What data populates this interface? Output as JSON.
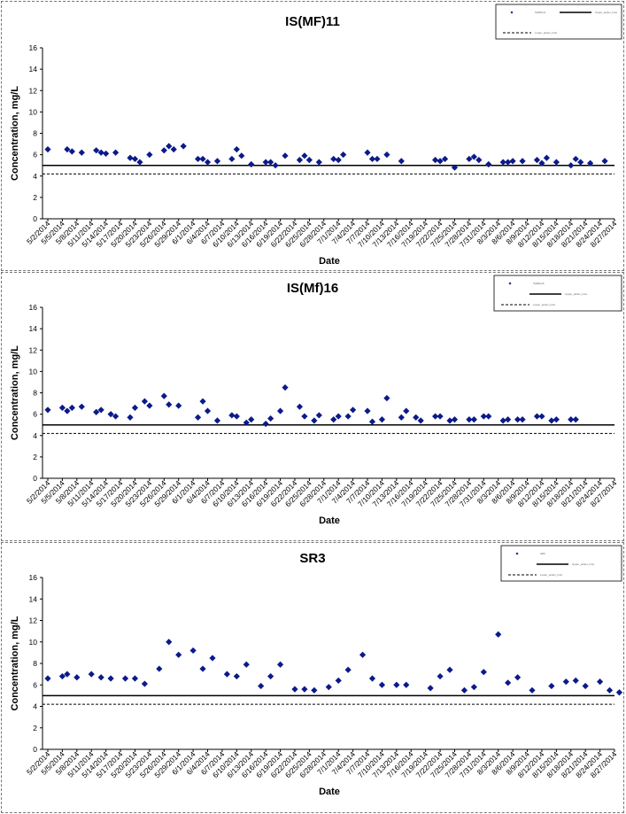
{
  "chart_data": [
    {
      "type": "scatter",
      "title": "IS(MF)11",
      "xlabel": "Date",
      "ylabel": "Concentration, mg/L",
      "ylim": [
        0,
        16
      ],
      "yticks": [
        0,
        2,
        4,
        6,
        8,
        10,
        12,
        14,
        16
      ],
      "grid": false,
      "legend_position": "top-right",
      "legend": [
        "IS(MF)11",
        "Upper_action_limit",
        "Lower_action_limit"
      ],
      "xticks": [
        "5/2/2014",
        "5/5/2014",
        "5/8/2014",
        "5/11/2014",
        "5/14/2014",
        "5/17/2014",
        "5/20/2014",
        "5/23/2014",
        "5/26/2014",
        "5/29/2014",
        "6/1/2014",
        "6/4/2014",
        "6/7/2014",
        "6/10/2014",
        "6/13/2014",
        "6/16/2014",
        "6/19/2014",
        "6/22/2014",
        "6/25/2014",
        "6/28/2014",
        "7/1/2014",
        "7/4/2014",
        "7/7/2014",
        "7/10/2014",
        "7/13/2014",
        "7/16/2014",
        "7/19/2014",
        "7/22/2014",
        "7/25/2014",
        "7/28/2014",
        "7/31/2014",
        "8/3/2014",
        "8/6/2014",
        "8/9/2014",
        "8/12/2014",
        "8/15/2014",
        "8/18/2014",
        "8/21/2014",
        "8/24/2014",
        "8/27/2014"
      ],
      "x": [
        "5/2/2014",
        "5/6/2014",
        "5/7/2014",
        "5/9/2014",
        "5/12/2014",
        "5/13/2014",
        "5/14/2014",
        "5/16/2014",
        "5/19/2014",
        "5/20/2014",
        "5/21/2014",
        "5/23/2014",
        "5/26/2014",
        "5/27/2014",
        "5/28/2014",
        "5/30/2014",
        "6/2/2014",
        "6/3/2014",
        "6/4/2014",
        "6/6/2014",
        "6/9/2014",
        "6/10/2014",
        "6/11/2014",
        "6/13/2014",
        "6/16/2014",
        "6/17/2014",
        "6/18/2014",
        "6/20/2014",
        "6/23/2014",
        "6/24/2014",
        "6/25/2014",
        "6/27/2014",
        "6/30/2014",
        "7/1/2014",
        "7/2/2014",
        "7/7/2014",
        "7/8/2014",
        "7/9/2014",
        "7/11/2014",
        "7/14/2014",
        "7/21/2014",
        "7/22/2014",
        "7/23/2014",
        "7/25/2014",
        "7/28/2014",
        "7/29/2014",
        "7/30/2014",
        "8/1/2014",
        "8/4/2014",
        "8/5/2014",
        "8/6/2014",
        "8/8/2014",
        "8/11/2014",
        "8/12/2014",
        "8/13/2014",
        "8/15/2014",
        "8/18/2014",
        "8/19/2014",
        "8/20/2014",
        "8/22/2014",
        "8/25/2014"
      ],
      "y": [
        6.5,
        6.5,
        6.3,
        6.2,
        6.4,
        6.2,
        6.1,
        6.2,
        5.7,
        5.6,
        5.3,
        6.0,
        6.4,
        6.8,
        6.5,
        6.8,
        5.6,
        5.6,
        5.3,
        5.4,
        5.6,
        6.5,
        5.9,
        5.1,
        5.3,
        5.3,
        5.0,
        5.9,
        5.5,
        5.9,
        5.5,
        5.3,
        5.6,
        5.5,
        6.0,
        6.2,
        5.6,
        5.6,
        6.0,
        5.4,
        5.5,
        5.4,
        5.6,
        4.8,
        5.6,
        5.8,
        5.5,
        5.1,
        5.3,
        5.3,
        5.4,
        5.4,
        5.5,
        5.2,
        5.7,
        5.3,
        5.0,
        5.6,
        5.3,
        5.2,
        5.4
      ],
      "reference_lines": {
        "solid": 5.0,
        "dashed": 4.2
      }
    },
    {
      "type": "scatter",
      "title": "IS(Mf)16",
      "xlabel": "Date",
      "ylabel": "Concentration, mg/L",
      "ylim": [
        0,
        16
      ],
      "yticks": [
        0,
        2,
        4,
        6,
        8,
        10,
        12,
        14,
        16
      ],
      "grid": false,
      "legend_position": "top-right",
      "legend": [
        "IS(MF)16",
        "Upper_action_limit",
        "Lower_action_limit"
      ],
      "xticks": [
        "5/2/2014",
        "5/5/2014",
        "5/8/2014",
        "5/11/2014",
        "5/14/2014",
        "5/17/2014",
        "5/20/2014",
        "5/23/2014",
        "5/26/2014",
        "5/29/2014",
        "6/1/2014",
        "6/4/2014",
        "6/7/2014",
        "6/10/2014",
        "6/13/2014",
        "6/16/2014",
        "6/19/2014",
        "6/22/2014",
        "6/25/2014",
        "6/28/2014",
        "7/1/2014",
        "7/4/2014",
        "7/7/2014",
        "7/10/2014",
        "7/13/2014",
        "7/16/2014",
        "7/19/2014",
        "7/22/2014",
        "7/25/2014",
        "7/28/2014",
        "7/31/2014",
        "8/3/2014",
        "8/6/2014",
        "8/9/2014",
        "8/12/2014",
        "8/15/2014",
        "8/18/2014",
        "8/21/2014",
        "8/24/2014",
        "8/27/2014"
      ],
      "x": [
        "5/2/2014",
        "5/5/2014",
        "5/6/2014",
        "5/7/2014",
        "5/9/2014",
        "5/12/2014",
        "5/13/2014",
        "5/15/2014",
        "5/16/2014",
        "5/19/2014",
        "5/20/2014",
        "5/22/2014",
        "5/23/2014",
        "5/26/2014",
        "5/27/2014",
        "5/29/2014",
        "6/2/2014",
        "6/3/2014",
        "6/4/2014",
        "6/6/2014",
        "6/9/2014",
        "6/10/2014",
        "6/12/2014",
        "6/13/2014",
        "6/16/2014",
        "6/17/2014",
        "6/19/2014",
        "6/20/2014",
        "6/23/2014",
        "6/24/2014",
        "6/26/2014",
        "6/27/2014",
        "6/30/2014",
        "7/1/2014",
        "7/3/2014",
        "7/4/2014",
        "7/7/2014",
        "7/8/2014",
        "7/10/2014",
        "7/11/2014",
        "7/14/2014",
        "7/15/2014",
        "7/17/2014",
        "7/18/2014",
        "7/21/2014",
        "7/22/2014",
        "7/24/2014",
        "7/25/2014",
        "7/28/2014",
        "7/29/2014",
        "7/31/2014",
        "8/1/2014",
        "8/4/2014",
        "8/5/2014",
        "8/7/2014",
        "8/8/2014",
        "8/11/2014",
        "8/12/2014",
        "8/14/2014",
        "8/15/2014",
        "8/18/2014",
        "8/19/2014"
      ],
      "y": [
        6.4,
        6.6,
        6.3,
        6.6,
        6.7,
        6.2,
        6.4,
        6.0,
        5.8,
        5.7,
        6.6,
        7.2,
        6.8,
        7.7,
        6.9,
        6.8,
        5.7,
        7.2,
        6.3,
        5.4,
        5.9,
        5.8,
        5.2,
        5.5,
        5.1,
        5.6,
        6.3,
        8.5,
        6.7,
        5.8,
        5.4,
        5.9,
        5.5,
        5.8,
        5.8,
        6.4,
        6.3,
        5.3,
        5.5,
        7.5,
        5.7,
        6.3,
        5.7,
        5.4,
        5.8,
        5.8,
        5.4,
        5.5,
        5.5,
        5.5,
        5.8,
        5.8,
        5.4,
        5.5,
        5.5,
        5.5,
        5.8,
        5.8,
        5.4,
        5.5,
        5.5,
        5.5
      ],
      "reference_lines": {
        "solid": 5.0,
        "dashed": 4.2
      }
    },
    {
      "type": "scatter",
      "title": "SR3",
      "xlabel": "Date",
      "ylabel": "Concentration, mg/L",
      "ylim": [
        0,
        16
      ],
      "yticks": [
        0,
        2,
        4,
        6,
        8,
        10,
        12,
        14,
        16
      ],
      "grid": false,
      "legend_position": "top-right",
      "legend": [
        "SR3",
        "Upper_action_limit",
        "Lower_action_limit"
      ],
      "xticks": [
        "5/2/2014",
        "5/5/2014",
        "5/8/2014",
        "5/11/2014",
        "5/14/2014",
        "5/17/2014",
        "5/20/2014",
        "5/23/2014",
        "5/26/2014",
        "5/29/2014",
        "6/1/2014",
        "6/4/2014",
        "6/7/2014",
        "6/10/2014",
        "6/13/2014",
        "6/16/2014",
        "6/19/2014",
        "6/22/2014",
        "6/25/2014",
        "6/28/2014",
        "7/1/2014",
        "7/4/2014",
        "7/7/2014",
        "7/10/2014",
        "7/13/2014",
        "7/16/2014",
        "7/19/2014",
        "7/22/2014",
        "7/25/2014",
        "7/28/2014",
        "7/31/2014",
        "8/3/2014",
        "8/6/2014",
        "8/9/2014",
        "8/12/2014",
        "8/15/2014",
        "8/18/2014",
        "8/21/2014",
        "8/24/2014",
        "8/27/2014"
      ],
      "x": [
        "5/2/2014",
        "5/5/2014",
        "5/6/2014",
        "5/8/2014",
        "5/11/2014",
        "5/13/2014",
        "5/15/2014",
        "5/18/2014",
        "5/20/2014",
        "5/22/2014",
        "5/25/2014",
        "5/27/2014",
        "5/29/2014",
        "6/1/2014",
        "6/3/2014",
        "6/5/2014",
        "6/8/2014",
        "6/10/2014",
        "6/12/2014",
        "6/15/2014",
        "6/17/2014",
        "6/19/2014",
        "6/22/2014",
        "6/24/2014",
        "6/26/2014",
        "6/29/2014",
        "7/1/2014",
        "7/3/2014",
        "7/6/2014",
        "7/8/2014",
        "7/10/2014",
        "7/13/2014",
        "7/15/2014",
        "7/20/2014",
        "7/22/2014",
        "7/24/2014",
        "7/27/2014",
        "7/29/2014",
        "7/31/2014",
        "8/3/2014",
        "8/5/2014",
        "8/7/2014",
        "8/10/2014",
        "8/14/2014",
        "8/17/2014",
        "8/19/2014",
        "8/21/2014",
        "8/24/2014",
        "8/26/2014",
        "8/28/2014"
      ],
      "y": [
        6.6,
        6.8,
        7.0,
        6.7,
        7.0,
        6.7,
        6.6,
        6.6,
        6.6,
        6.1,
        7.5,
        10.0,
        8.8,
        9.2,
        7.5,
        8.5,
        7.0,
        6.8,
        7.9,
        5.9,
        6.8,
        7.9,
        5.6,
        5.6,
        5.5,
        5.8,
        6.4,
        7.4,
        8.8,
        6.6,
        6.0,
        6.0,
        6.0,
        5.7,
        6.8,
        7.4,
        5.5,
        5.8,
        7.2,
        10.7,
        6.2,
        6.7,
        5.5,
        5.9,
        6.3,
        6.4,
        5.9,
        6.3,
        5.5,
        5.3
      ],
      "reference_lines": {
        "solid": 5.0,
        "dashed": 4.2
      }
    }
  ]
}
